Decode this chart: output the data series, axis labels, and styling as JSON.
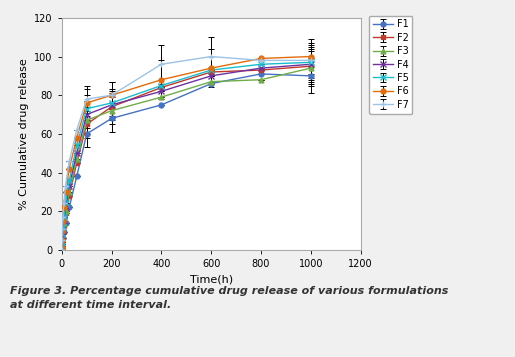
{
  "title": "",
  "xlabel": "Time(h)",
  "ylabel": "% Cumulative drug release",
  "xlim": [
    0,
    1200
  ],
  "ylim": [
    0,
    120
  ],
  "xticks": [
    0,
    200,
    400,
    600,
    800,
    1000,
    1200
  ],
  "yticks": [
    0,
    20,
    40,
    60,
    80,
    100,
    120
  ],
  "caption": "Figure 3. Percentage cumulative drug release of various formulations\nat different time interval.",
  "series": [
    {
      "label": "F1",
      "color": "#4472C4",
      "marker": "o",
      "markersize": 3.5,
      "x": [
        0,
        1,
        2,
        4,
        8,
        15,
        30,
        60,
        100,
        200,
        400,
        600,
        800,
        1000
      ],
      "y": [
        0,
        2,
        4,
        6,
        9,
        14,
        22,
        38,
        60,
        68,
        75,
        86,
        91,
        90
      ],
      "yerr": [
        0,
        0,
        0,
        0,
        0,
        0,
        0,
        0,
        7,
        7,
        0,
        0,
        0,
        9
      ]
    },
    {
      "label": "F2",
      "color": "#C0392B",
      "marker": "s",
      "markersize": 3.5,
      "x": [
        0,
        1,
        2,
        4,
        8,
        15,
        30,
        60,
        100,
        200,
        400,
        600,
        800,
        1000
      ],
      "y": [
        0,
        3,
        6,
        9,
        13,
        19,
        28,
        45,
        65,
        74,
        84,
        92,
        93,
        95
      ],
      "yerr": [
        0,
        0,
        0,
        0,
        0,
        0,
        0,
        0,
        7,
        7,
        0,
        0,
        0,
        9
      ]
    },
    {
      "label": "F3",
      "color": "#70AD47",
      "marker": "^",
      "markersize": 3.5,
      "x": [
        0,
        1,
        2,
        4,
        8,
        15,
        30,
        60,
        100,
        200,
        400,
        600,
        800,
        1000
      ],
      "y": [
        0,
        3,
        6,
        9,
        14,
        20,
        30,
        47,
        67,
        72,
        79,
        87,
        88,
        94
      ],
      "yerr": [
        0,
        0,
        0,
        0,
        0,
        0,
        0,
        0,
        7,
        7,
        0,
        0,
        0,
        9
      ]
    },
    {
      "label": "F4",
      "color": "#7030A0",
      "marker": "x",
      "markersize": 4,
      "x": [
        0,
        1,
        2,
        4,
        8,
        15,
        30,
        60,
        100,
        200,
        400,
        600,
        800,
        1000
      ],
      "y": [
        0,
        4,
        7,
        10,
        15,
        22,
        33,
        50,
        70,
        75,
        82,
        90,
        94,
        96
      ],
      "yerr": [
        0,
        0,
        0,
        0,
        0,
        0,
        0,
        0,
        7,
        7,
        0,
        0,
        0,
        9
      ]
    },
    {
      "label": "F5",
      "color": "#17BECF",
      "marker": "x",
      "markersize": 4,
      "x": [
        0,
        1,
        2,
        4,
        8,
        15,
        30,
        60,
        100,
        200,
        400,
        600,
        800,
        1000
      ],
      "y": [
        0,
        4,
        8,
        12,
        17,
        24,
        36,
        54,
        73,
        76,
        85,
        93,
        96,
        97
      ],
      "yerr": [
        0,
        0,
        0,
        0,
        0,
        0,
        0,
        0,
        7,
        7,
        0,
        0,
        0,
        9
      ]
    },
    {
      "label": "F6",
      "color": "#E36C09",
      "marker": "o",
      "markersize": 3.5,
      "x": [
        0,
        1,
        2,
        4,
        8,
        15,
        30,
        60,
        100,
        200,
        400,
        600,
        800,
        1000
      ],
      "y": [
        1,
        5,
        10,
        15,
        22,
        30,
        42,
        58,
        76,
        80,
        88,
        94,
        99,
        100
      ],
      "yerr": [
        0,
        0,
        0,
        0,
        0,
        0,
        0,
        0,
        7,
        7,
        10,
        10,
        0,
        9
      ]
    },
    {
      "label": "F7",
      "color": "#9DC3E6",
      "marker": "+",
      "markersize": 4,
      "x": [
        0,
        1,
        2,
        4,
        8,
        15,
        30,
        60,
        100,
        200,
        400,
        600,
        800,
        1000
      ],
      "y": [
        0,
        5,
        11,
        17,
        24,
        33,
        46,
        62,
        78,
        80,
        96,
        100,
        98,
        98
      ],
      "yerr": [
        0,
        0,
        0,
        0,
        0,
        0,
        0,
        0,
        7,
        7,
        10,
        10,
        0,
        9
      ]
    }
  ],
  "legend_fontsize": 7,
  "axis_label_fontsize": 8,
  "tick_fontsize": 7,
  "caption_fontsize": 8,
  "figure_bg": "#f0f0f0",
  "plot_bg": "#ffffff",
  "border_color": "#aaaaaa"
}
